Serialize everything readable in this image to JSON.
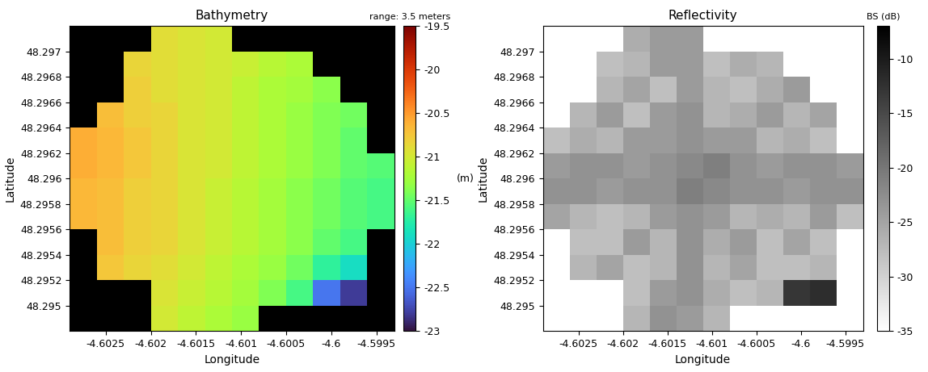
{
  "chart_data": [
    {
      "type": "heatmap",
      "title": "Bathymetry",
      "x_label": "Longitude",
      "y_label": "Latitude",
      "color": "turbo",
      "colorbar_title": "range: 3.5 meters",
      "colorbar_label": "(m)",
      "color_range": [
        -23,
        -19.5
      ],
      "color_ticks": [
        -23,
        -22.5,
        -22,
        -21.5,
        -21,
        -20.5,
        -20,
        -19.5
      ],
      "xlim": [
        -4.6029,
        -4.5993
      ],
      "ylim": [
        48.2948,
        48.2972
      ],
      "xticks": [
        -4.6025,
        -4.602,
        -4.6015,
        -4.601,
        -4.6005,
        -4.6,
        -4.5995
      ],
      "yticks": [
        48.295,
        48.2952,
        48.2954,
        48.2956,
        48.2958,
        48.296,
        48.2962,
        48.2964,
        48.2966,
        48.2968,
        48.297
      ],
      "x": [
        -4.60275,
        -4.60245,
        -4.60215,
        -4.60185,
        -4.60155,
        -4.60125,
        -4.60095,
        -4.60065,
        -4.60035,
        -4.60005,
        -4.59975,
        -4.59945
      ],
      "y": [
        48.2949,
        48.2951,
        48.2953,
        48.2955,
        48.2957,
        48.2959,
        48.2961,
        48.2963,
        48.2965,
        48.2967,
        48.2969,
        48.2971
      ],
      "cells": [
        [
          null,
          null,
          null,
          -21.0,
          -21.1,
          -21.2,
          -21.3,
          null,
          null,
          null,
          null,
          null
        ],
        [
          null,
          null,
          null,
          -20.95,
          -21.05,
          -21.15,
          -21.25,
          -21.4,
          -21.6,
          -22.5,
          -22.8,
          null
        ],
        [
          null,
          -20.75,
          -20.85,
          -20.9,
          -21.0,
          -21.1,
          -21.2,
          -21.3,
          -21.45,
          -21.7,
          -21.9,
          null
        ],
        [
          null,
          -20.7,
          -20.8,
          -20.85,
          -20.95,
          -21.05,
          -21.15,
          -21.25,
          -21.35,
          -21.5,
          -21.6,
          null
        ],
        [
          -20.65,
          -20.7,
          -20.8,
          -20.85,
          -20.95,
          -21.05,
          -21.15,
          -21.25,
          -21.35,
          -21.45,
          -21.55,
          -21.6
        ],
        [
          -20.65,
          -20.7,
          -20.8,
          -20.85,
          -20.95,
          -21.05,
          -21.15,
          -21.25,
          -21.35,
          -21.45,
          -21.55,
          -21.6
        ],
        [
          -20.6,
          -20.65,
          -20.75,
          -20.85,
          -20.95,
          -21.0,
          -21.1,
          -21.2,
          -21.3,
          -21.4,
          -21.5,
          -21.55
        ],
        [
          -20.6,
          -20.65,
          -20.75,
          -20.85,
          -20.95,
          -21.0,
          -21.1,
          -21.2,
          -21.3,
          -21.4,
          -21.5,
          null
        ],
        [
          null,
          -20.7,
          -20.8,
          -20.85,
          -20.95,
          -21.0,
          -21.1,
          -21.2,
          -21.3,
          -21.4,
          -21.45,
          null
        ],
        [
          null,
          null,
          -20.8,
          -20.9,
          -20.95,
          -21.0,
          -21.1,
          -21.2,
          -21.25,
          -21.35,
          null,
          null
        ],
        [
          null,
          null,
          -20.85,
          -20.9,
          -20.95,
          -21.0,
          -21.05,
          -21.15,
          -21.2,
          null,
          null,
          null
        ],
        [
          null,
          null,
          null,
          -20.9,
          -20.95,
          -21.0,
          null,
          null,
          null,
          null,
          null,
          null
        ]
      ]
    },
    {
      "type": "heatmap",
      "title": "Reflectivity",
      "x_label": "Longitude",
      "y_label": "Latitude",
      "color": "gray_r",
      "colorbar_title": "BS (dB)",
      "color_range": [
        -35,
        -7
      ],
      "color_ticks": [
        -35,
        -30,
        -25,
        -20,
        -15,
        -10
      ],
      "xlim": [
        -4.6029,
        -4.5993
      ],
      "ylim": [
        48.2948,
        48.2972
      ],
      "xticks": [
        -4.6025,
        -4.602,
        -4.6015,
        -4.601,
        -4.6005,
        -4.6,
        -4.5995
      ],
      "yticks": [
        48.295,
        48.2952,
        48.2954,
        48.2956,
        48.2958,
        48.296,
        48.2962,
        48.2964,
        48.2966,
        48.2968,
        48.297
      ],
      "x": [
        -4.60275,
        -4.60245,
        -4.60215,
        -4.60185,
        -4.60155,
        -4.60125,
        -4.60095,
        -4.60065,
        -4.60035,
        -4.60005,
        -4.59975,
        -4.59945
      ],
      "y": [
        48.2949,
        48.2951,
        48.2953,
        48.2955,
        48.2957,
        48.2959,
        48.2961,
        48.2963,
        48.2965,
        48.2967,
        48.2969,
        48.2971
      ],
      "cells": [
        [
          null,
          null,
          null,
          -27,
          -23,
          -24,
          -27,
          null,
          null,
          null,
          null,
          null
        ],
        [
          null,
          null,
          null,
          -28,
          -24,
          -23,
          -26,
          -28,
          -27,
          -13,
          -12,
          null
        ],
        [
          null,
          -27,
          -25,
          -28,
          -27,
          -23,
          -27,
          -25,
          -28,
          -28,
          -27,
          null
        ],
        [
          null,
          -28,
          -28,
          -24,
          -27,
          -23,
          -26,
          -24,
          -28,
          -25,
          -28,
          null
        ],
        [
          -25,
          -27,
          -28,
          -27,
          -24,
          -23,
          -24,
          -27,
          -26,
          -27,
          -24,
          -28
        ],
        [
          -23,
          -23,
          -24,
          -23,
          -23,
          -21,
          -22,
          -23,
          -23,
          -24,
          -23,
          -23
        ],
        [
          -24,
          -23,
          -23,
          -24,
          -23,
          -22,
          -21,
          -23,
          -24,
          -23,
          -23,
          -24
        ],
        [
          -28,
          -26,
          -27,
          -24,
          -24,
          -23,
          -24,
          -24,
          -27,
          -26,
          -28,
          null
        ],
        [
          null,
          -27,
          -24,
          -28,
          -24,
          -23,
          -27,
          -26,
          -24,
          -27,
          -25,
          null
        ],
        [
          null,
          null,
          -27,
          -25,
          -28,
          -24,
          -27,
          -28,
          -26,
          -24,
          null,
          null
        ],
        [
          null,
          null,
          -28,
          -27,
          -24,
          -24,
          -28,
          -26,
          -27,
          null,
          null,
          null
        ],
        [
          null,
          null,
          null,
          -26,
          -24,
          -24,
          null,
          null,
          null,
          null,
          null,
          null
        ]
      ]
    }
  ]
}
